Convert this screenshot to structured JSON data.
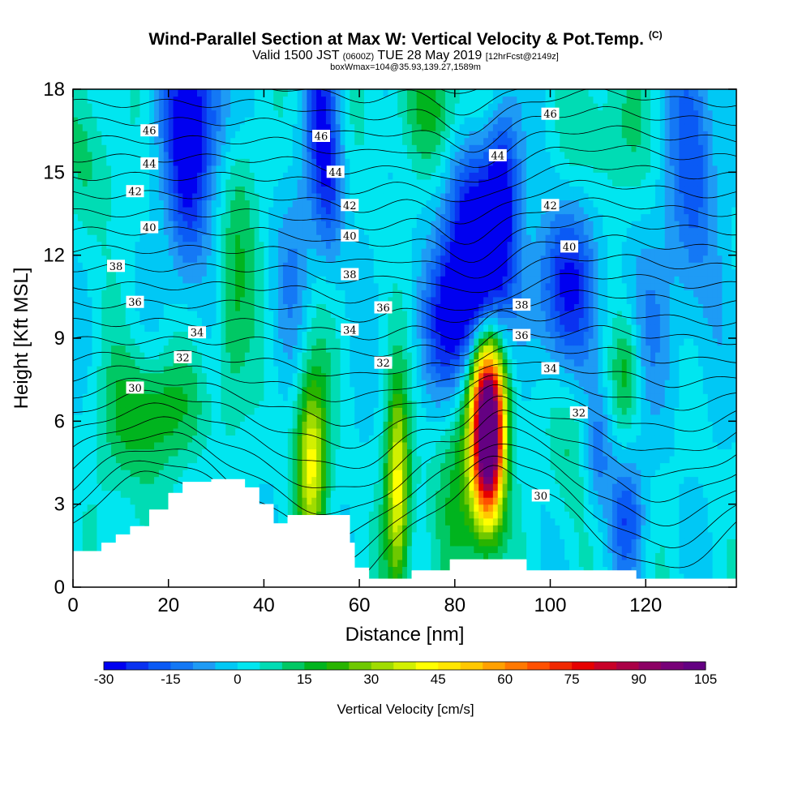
{
  "header": {
    "title_main": "Wind-Parallel Section at Max W: Vertical Velocity & Pot.Temp.",
    "title_copyright": "(C)",
    "valid_prefix": "Valid 1500 JST",
    "valid_utc": "(0600Z)",
    "valid_date": "TUE 28 May 2019",
    "forecast_info": "[12hrFcst@2149z]",
    "box_info": "boxWmax=104@35.93,139.27,1589m"
  },
  "chart_data": {
    "type": "heatmap",
    "xlabel": "Distance [nm]",
    "ylabel": "Height [Kft MSL]",
    "xlim": [
      0,
      139
    ],
    "ylim": [
      0,
      18
    ],
    "x_ticks": [
      0,
      20,
      40,
      60,
      80,
      100,
      120
    ],
    "y_ticks": [
      0,
      3,
      6,
      9,
      12,
      15,
      18
    ],
    "colorbar": {
      "label": "Vertical Velocity [cm/s]",
      "tick_labels": [
        "-30",
        "-15",
        "0",
        "15",
        "30",
        "45",
        "60",
        "75",
        "90",
        "105"
      ],
      "levels": [
        -30,
        -25,
        -20,
        -15,
        -10,
        -5,
        0,
        5,
        10,
        15,
        20,
        25,
        30,
        35,
        40,
        45,
        50,
        55,
        60,
        65,
        70,
        75,
        80,
        85,
        90,
        95,
        100,
        105
      ],
      "colors": [
        "#0000f0",
        "#0a32f0",
        "#0a5af5",
        "#1478f5",
        "#1e9bf5",
        "#00c8f5",
        "#00e6f0",
        "#00dcb4",
        "#00c864",
        "#00b41e",
        "#28b400",
        "#6ec800",
        "#a0dc00",
        "#d2f000",
        "#ffff00",
        "#ffe600",
        "#ffc800",
        "#ffa000",
        "#ff7800",
        "#ff5000",
        "#f02800",
        "#e60000",
        "#c80028",
        "#aa0046",
        "#8c0064",
        "#780078",
        "#640082"
      ]
    },
    "theta_contour_labels": [
      {
        "label": "46",
        "x": 16,
        "y": 16.5
      },
      {
        "label": "44",
        "x": 16,
        "y": 15.3
      },
      {
        "label": "42",
        "x": 13,
        "y": 14.3
      },
      {
        "label": "40",
        "x": 16,
        "y": 13.0
      },
      {
        "label": "38",
        "x": 9,
        "y": 11.6
      },
      {
        "label": "36",
        "x": 13,
        "y": 10.3
      },
      {
        "label": "34",
        "x": 26,
        "y": 9.2
      },
      {
        "label": "32",
        "x": 23,
        "y": 8.3
      },
      {
        "label": "30",
        "x": 13,
        "y": 7.2
      },
      {
        "label": "46",
        "x": 52,
        "y": 16.3
      },
      {
        "label": "44",
        "x": 55,
        "y": 15.0
      },
      {
        "label": "42",
        "x": 58,
        "y": 13.8
      },
      {
        "label": "40",
        "x": 58,
        "y": 12.7
      },
      {
        "label": "38",
        "x": 58,
        "y": 11.3
      },
      {
        "label": "34",
        "x": 58,
        "y": 9.3
      },
      {
        "label": "36",
        "x": 65,
        "y": 10.1
      },
      {
        "label": "32",
        "x": 65,
        "y": 8.1
      },
      {
        "label": "44",
        "x": 89,
        "y": 15.6
      },
      {
        "label": "46",
        "x": 100,
        "y": 17.1
      },
      {
        "label": "42",
        "x": 100,
        "y": 13.8
      },
      {
        "label": "40",
        "x": 104,
        "y": 12.3
      },
      {
        "label": "38",
        "x": 94,
        "y": 10.2
      },
      {
        "label": "36",
        "x": 94,
        "y": 9.1
      },
      {
        "label": "34",
        "x": 100,
        "y": 7.9
      },
      {
        "label": "32",
        "x": 106,
        "y": 6.3
      },
      {
        "label": "30",
        "x": 98,
        "y": 3.3
      }
    ],
    "terrain_kft": [
      [
        0,
        1.3
      ],
      [
        6,
        1.6
      ],
      [
        9,
        1.9
      ],
      [
        12,
        2.2
      ],
      [
        16,
        2.8
      ],
      [
        20,
        3.4
      ],
      [
        23,
        3.8
      ],
      [
        29,
        3.9
      ],
      [
        36,
        3.6
      ],
      [
        39,
        3.0
      ],
      [
        42,
        2.3
      ],
      [
        45,
        2.6
      ],
      [
        54,
        2.6
      ],
      [
        58,
        1.6
      ],
      [
        59,
        0.7
      ],
      [
        61,
        0.7
      ],
      [
        62,
        0.3
      ],
      [
        65,
        0.3
      ],
      [
        70,
        0.3
      ],
      [
        71,
        0.6
      ],
      [
        78,
        0.6
      ],
      [
        79,
        1.0
      ],
      [
        94,
        1.0
      ],
      [
        95,
        0.6
      ],
      [
        117,
        0.6
      ],
      [
        118,
        0.3
      ],
      [
        139,
        0.3
      ]
    ]
  }
}
